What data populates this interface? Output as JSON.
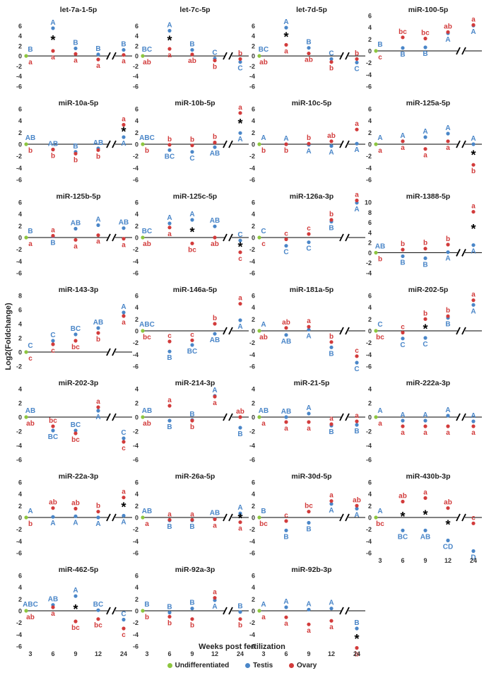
{
  "figure": {
    "ylabel": "Log2(Foldchange)",
    "xlabel": "Weeks post fertilization",
    "x_ticks": [
      "3",
      "6",
      "9",
      "12",
      "24"
    ],
    "legend": [
      {
        "name": "Undifferentiated",
        "color": "#8dc63f"
      },
      {
        "name": "Testis",
        "color": "#4a86c8"
      },
      {
        "name": "Ovary",
        "color": "#d23b3b"
      }
    ]
  },
  "chart_data": [
    {
      "type": "scatter",
      "title": "let-7a-1-5p",
      "ylim": [
        -6,
        8
      ],
      "yticks": [
        -6,
        -4,
        -2,
        0,
        2,
        4,
        6
      ],
      "testis": [
        0,
        5.5,
        1.5,
        0.3,
        1.2
      ],
      "ovary": [
        0,
        1.0,
        0.4,
        -0.7,
        0.2
      ],
      "testis_labels": [
        "B",
        "A",
        "B",
        "B",
        "B"
      ],
      "ovary_labels": [
        "a",
        "a",
        "a",
        "a",
        "a"
      ],
      "star": [
        1
      ]
    },
    {
      "type": "scatter",
      "title": "let-7c-5p",
      "ylim": [
        -6,
        8
      ],
      "yticks": [
        -6,
        -4,
        -2,
        0,
        2,
        4,
        6
      ],
      "testis": [
        0,
        5.0,
        1.2,
        -0.5,
        -1.2
      ],
      "ovary": [
        0,
        1.4,
        0.3,
        -0.9,
        -0.6
      ],
      "testis_labels": [
        "BC",
        "A",
        "B",
        "C",
        "C"
      ],
      "ovary_labels": [
        "ab",
        "a",
        "ab",
        "b",
        "b"
      ],
      "star": [
        1
      ]
    },
    {
      "type": "scatter",
      "title": "let-7d-5p",
      "ylim": [
        -6,
        8
      ],
      "yticks": [
        -6,
        -4,
        -2,
        0,
        2,
        4,
        6
      ],
      "testis": [
        0,
        5.6,
        1.6,
        -0.6,
        -1.3
      ],
      "ovary": [
        0,
        2.2,
        0.5,
        -1.2,
        -0.6
      ],
      "testis_labels": [
        "BC",
        "A",
        "B",
        "C",
        "C"
      ],
      "ovary_labels": [
        "ab",
        "a",
        "ab",
        "b",
        "b"
      ],
      "star": [
        1
      ]
    },
    {
      "type": "scatter",
      "title": "miR-100-5p",
      "ylim": [
        -6,
        6
      ],
      "yticks": [
        -6,
        -4,
        -2,
        0,
        2,
        4,
        6
      ],
      "testis": [
        0,
        0.5,
        0.6,
        3.0,
        4.3
      ],
      "ovary": [
        0,
        2.3,
        2.1,
        3.2,
        4.4
      ],
      "testis_labels": [
        "B",
        "B",
        "B",
        "A",
        "A"
      ],
      "ovary_labels": [
        "c",
        "bc",
        "bc",
        "ab",
        "a"
      ],
      "star": []
    },
    {
      "type": "scatter",
      "title": "miR-10a-5p",
      "ylim": [
        -6,
        6
      ],
      "yticks": [
        -6,
        -4,
        -2,
        0,
        2,
        4,
        6
      ],
      "testis": [
        0,
        -0.9,
        -1.3,
        -0.7,
        1.2
      ],
      "ovary": [
        0,
        -0.9,
        -1.6,
        -1.0,
        3.3
      ],
      "testis_labels": [
        "AB",
        "AB",
        "B",
        "AB",
        "A"
      ],
      "ovary_labels": [
        "b",
        "b",
        "b",
        "b",
        "a"
      ],
      "star": [
        4
      ]
    },
    {
      "type": "scatter",
      "title": "miR-10b-5p",
      "ylim": [
        -6,
        6
      ],
      "yticks": [
        -6,
        -4,
        -2,
        0,
        2,
        4,
        6
      ],
      "testis": [
        0,
        -1.0,
        -1.3,
        -0.5,
        1.9
      ],
      "ovary": [
        0,
        -0.1,
        -0.2,
        0.3,
        5.3
      ],
      "testis_labels": [
        "ABC",
        "BC",
        "C",
        "AB",
        "A"
      ],
      "ovary_labels": [
        "b",
        "b",
        "b",
        "b",
        "a"
      ],
      "star": [
        4
      ]
    },
    {
      "type": "scatter",
      "title": "miR-10c-5p",
      "ylim": [
        -6,
        6
      ],
      "yticks": [
        -6,
        -4,
        -2,
        0,
        2,
        4,
        6
      ],
      "testis": [
        0,
        0.0,
        -0.1,
        -0.3,
        0.1
      ],
      "ovary": [
        0,
        0.0,
        0.1,
        0.5,
        2.5
      ],
      "testis_labels": [
        "A",
        "A",
        "A",
        "A",
        "A"
      ],
      "ovary_labels": [
        "b",
        "b",
        "b",
        "ab",
        "a"
      ],
      "star": []
    },
    {
      "type": "scatter",
      "title": "miR-125a-5p",
      "ylim": [
        -6,
        6
      ],
      "yticks": [
        -6,
        -4,
        -2,
        0,
        2,
        4,
        6
      ],
      "testis": [
        0,
        0.5,
        1.2,
        1.8,
        0.0
      ],
      "ovary": [
        0,
        0.5,
        -0.8,
        0.5,
        -3.5
      ],
      "testis_labels": [
        "A",
        "A",
        "A",
        "A",
        "A"
      ],
      "ovary_labels": [
        "a",
        "a",
        "a",
        "a",
        "b"
      ],
      "star": [
        4
      ]
    },
    {
      "type": "scatter",
      "title": "miR-125b-5p",
      "ylim": [
        -6,
        6
      ],
      "yticks": [
        -6,
        -4,
        -2,
        0,
        2,
        4,
        6
      ],
      "testis": [
        0,
        0.2,
        1.5,
        2.1,
        1.6
      ],
      "ovary": [
        0,
        0.3,
        -0.4,
        0.4,
        -0.2
      ],
      "testis_labels": [
        "B",
        "B",
        "AB",
        "A",
        "AB"
      ],
      "ovary_labels": [
        "a",
        "a",
        "a",
        "a",
        "a"
      ],
      "star": []
    },
    {
      "type": "scatter",
      "title": "miR-125c-5p",
      "ylim": [
        -6,
        6
      ],
      "yticks": [
        -6,
        -4,
        -2,
        0,
        2,
        4,
        6
      ],
      "testis": [
        0,
        2.4,
        3.0,
        1.9,
        -0.5
      ],
      "ovary": [
        0,
        1.7,
        -1.0,
        0.0,
        -2.5
      ],
      "testis_labels": [
        "BC",
        "A",
        "A",
        "AB",
        "C"
      ],
      "ovary_labels": [
        "ab",
        "a",
        "bc",
        "ab",
        "c"
      ],
      "star": [
        2,
        4
      ]
    },
    {
      "type": "scatter",
      "title": "miR-126a-3p",
      "ylim": [
        -6,
        6
      ],
      "yticks": [
        -6,
        -4,
        -2,
        0,
        2,
        4,
        6
      ],
      "testis": [
        0,
        -1.4,
        -0.8,
        2.7,
        5.9
      ],
      "ovary": [
        0,
        -0.3,
        0.6,
        3.0,
        6.3
      ],
      "testis_labels": [
        "C",
        "C",
        "C",
        "B",
        "A"
      ],
      "ovary_labels": [
        "c",
        "c",
        "c",
        "b",
        "a"
      ],
      "star": []
    },
    {
      "type": "scatter",
      "title": "miR-1388-5p",
      "ylim": [
        -4,
        10
      ],
      "yticks": [
        -4,
        -2,
        0,
        2,
        4,
        6,
        8,
        10
      ],
      "testis": [
        0,
        -0.7,
        -1.1,
        0.1,
        1.5
      ],
      "ovary": [
        0,
        0.6,
        0.8,
        1.6,
        8.1
      ],
      "testis_labels": [
        "AB",
        "B",
        "B",
        "A",
        "A"
      ],
      "ovary_labels": [
        "b",
        "b",
        "b",
        "b",
        "a"
      ],
      "star": [
        4
      ]
    },
    {
      "type": "scatter",
      "title": "miR-143-3p",
      "ylim": [
        -2,
        8
      ],
      "yticks": [
        -2,
        0,
        2,
        4,
        6,
        8
      ],
      "testis": [
        0,
        1.6,
        2.5,
        3.4,
        5.6
      ],
      "ovary": [
        0,
        1.1,
        1.6,
        2.7,
        5.1
      ],
      "testis_labels": [
        "C",
        "C",
        "BC",
        "AB",
        "A"
      ],
      "ovary_labels": [
        "c",
        "c",
        "bc",
        "b",
        "a"
      ],
      "star": []
    },
    {
      "type": "scatter",
      "title": "miR-146a-5p",
      "ylim": [
        -6,
        6
      ],
      "yticks": [
        -6,
        -4,
        -2,
        0,
        2,
        4,
        6
      ],
      "testis": [
        0,
        -3.5,
        -2.4,
        -0.5,
        1.8
      ],
      "ovary": [
        0,
        -1.8,
        -1.6,
        1.2,
        4.6
      ],
      "testis_labels": [
        "ABC",
        "B",
        "BC",
        "AB",
        "A"
      ],
      "ovary_labels": [
        "bc",
        "c",
        "c",
        "b",
        "a"
      ],
      "star": []
    },
    {
      "type": "scatter",
      "title": "miR-181a-5p",
      "ylim": [
        -6,
        6
      ],
      "yticks": [
        -6,
        -4,
        -2,
        0,
        2,
        4,
        6
      ],
      "testis": [
        0,
        -0.7,
        0.2,
        -2.8,
        -5.4
      ],
      "ovary": [
        0,
        0.5,
        0.7,
        -1.9,
        -4.3
      ],
      "testis_labels": [
        "A",
        "AB",
        "A",
        "B",
        "C"
      ],
      "ovary_labels": [
        "ab",
        "ab",
        "a",
        "b",
        "c"
      ],
      "star": []
    },
    {
      "type": "scatter",
      "title": "miR-202-5p",
      "ylim": [
        -6,
        6
      ],
      "yticks": [
        -6,
        -4,
        -2,
        0,
        2,
        4,
        6
      ],
      "testis": [
        0,
        -1.3,
        -1.2,
        2.2,
        4.4
      ],
      "ovary": [
        0,
        -0.3,
        2.0,
        2.5,
        5.2
      ],
      "testis_labels": [
        "C",
        "C",
        "C",
        "B",
        "A"
      ],
      "ovary_labels": [
        "bc",
        "c",
        "b",
        "b",
        "a"
      ],
      "star": [
        2
      ]
    },
    {
      "type": "scatter",
      "title": "miR-202-3p",
      "ylim": [
        -6,
        4
      ],
      "yticks": [
        -6,
        -4,
        -2,
        0,
        2,
        4
      ],
      "testis": [
        0,
        -1.9,
        -1.9,
        0.9,
        -3.0
      ],
      "ovary": [
        0,
        -1.3,
        -2.3,
        1.4,
        -3.5
      ],
      "testis_labels": [
        "AB",
        "BC",
        "BC",
        "A",
        "C"
      ],
      "ovary_labels": [
        "ab",
        "bc",
        "bc",
        "a",
        "c"
      ],
      "star": []
    },
    {
      "type": "scatter",
      "title": "miR-214-3p",
      "ylim": [
        -6,
        4
      ],
      "yticks": [
        -6,
        -4,
        -2,
        0,
        2,
        4
      ],
      "testis": [
        0,
        -0.5,
        -0.4,
        3.0,
        -1.5
      ],
      "ovary": [
        0,
        1.6,
        -0.5,
        2.9,
        0.0
      ],
      "testis_labels": [
        "AB",
        "B",
        "B",
        "A",
        "B"
      ],
      "ovary_labels": [
        "ab",
        "a",
        "b",
        "a",
        "ab"
      ],
      "star": []
    },
    {
      "type": "scatter",
      "title": "miR-21-5p",
      "ylim": [
        -6,
        4
      ],
      "yticks": [
        -6,
        -4,
        -2,
        0,
        2,
        4
      ],
      "testis": [
        0,
        0.0,
        0.5,
        -1.2,
        -1.1
      ],
      "ovary": [
        0,
        -0.7,
        -0.7,
        -1.0,
        -0.6
      ],
      "testis_labels": [
        "AB",
        "AB",
        "A",
        "B",
        "B"
      ],
      "ovary_labels": [
        "a",
        "a",
        "a",
        "a",
        "a"
      ],
      "star": []
    },
    {
      "type": "scatter",
      "title": "miR-222a-3p",
      "ylim": [
        -6,
        4
      ],
      "yticks": [
        -6,
        -4,
        -2,
        0,
        2,
        4
      ],
      "testis": [
        0,
        -0.5,
        -0.5,
        0.2,
        -0.6
      ],
      "ovary": [
        0,
        -1.3,
        -1.3,
        -1.3,
        -1.3
      ],
      "testis_labels": [
        "A",
        "A",
        "A",
        "A",
        "A"
      ],
      "ovary_labels": [
        "a",
        "a",
        "a",
        "a",
        "a"
      ],
      "star": []
    },
    {
      "type": "scatter",
      "title": "miR-22a-3p",
      "ylim": [
        -6,
        6
      ],
      "yticks": [
        -6,
        -4,
        -2,
        0,
        2,
        4,
        6
      ],
      "testis": [
        0,
        0.1,
        0.2,
        0.0,
        0.3
      ],
      "ovary": [
        0,
        1.6,
        1.5,
        1.0,
        3.4
      ],
      "testis_labels": [
        "A",
        "A",
        "A",
        "A",
        "A"
      ],
      "ovary_labels": [
        "b",
        "ab",
        "ab",
        "b",
        "a"
      ],
      "star": [
        4
      ]
    },
    {
      "type": "scatter",
      "title": "miR-26a-5p",
      "ylim": [
        -6,
        6
      ],
      "yticks": [
        -6,
        -4,
        -2,
        0,
        2,
        4,
        6
      ],
      "testis": [
        0,
        -0.5,
        -0.5,
        -0.2,
        0.7
      ],
      "ovary": [
        0,
        -0.4,
        -0.4,
        -0.3,
        -0.8
      ],
      "testis_labels": [
        "AB",
        "B",
        "B",
        "AB",
        "A"
      ],
      "ovary_labels": [
        "a",
        "a",
        "a",
        "a",
        "a"
      ],
      "star": [
        4
      ]
    },
    {
      "type": "scatter",
      "title": "miR-30d-5p",
      "ylim": [
        -6,
        6
      ],
      "yticks": [
        -6,
        -4,
        -2,
        0,
        2,
        4,
        6
      ],
      "testis": [
        0,
        -2.2,
        -0.9,
        2.3,
        1.5
      ],
      "ovary": [
        0,
        -0.6,
        1.0,
        2.8,
        2.0
      ],
      "testis_labels": [
        "B",
        "B",
        "B",
        "A",
        "A"
      ],
      "ovary_labels": [
        "bc",
        "c",
        "bc",
        "a",
        "ab"
      ],
      "star": []
    },
    {
      "type": "scatter",
      "title": "miR-430b-3p",
      "ylim": [
        -6,
        6
      ],
      "yticks": [
        -6,
        -4,
        -2,
        0,
        2,
        4,
        6
      ],
      "testis": [
        0,
        -2.2,
        -2.2,
        -3.9,
        -5.7
      ],
      "ovary": [
        0,
        2.7,
        3.3,
        1.6,
        -1.0
      ],
      "testis_labels": [
        "A",
        "BC",
        "AB",
        "CD",
        "D"
      ],
      "ovary_labels": [
        "bc",
        "ab",
        "a",
        "ab",
        "c"
      ],
      "star": [
        1,
        2,
        3
      ]
    },
    {
      "type": "scatter",
      "title": "miR-462-5p",
      "ylim": [
        -6,
        6
      ],
      "yticks": [
        -6,
        -4,
        -2,
        0,
        2,
        4,
        6
      ],
      "testis": [
        0,
        1.0,
        2.5,
        0.1,
        -1.5
      ],
      "ovary": [
        0,
        0.6,
        -1.8,
        -1.4,
        -3.0
      ],
      "testis_labels": [
        "ABC",
        "AB",
        "A",
        "BC",
        "C"
      ],
      "ovary_labels": [
        "ab",
        "a",
        "bc",
        "bc",
        "c"
      ],
      "star": [
        2
      ]
    },
    {
      "type": "scatter",
      "title": "miR-92a-3p",
      "ylim": [
        -6,
        6
      ],
      "yticks": [
        -6,
        -4,
        -2,
        0,
        2,
        4,
        6
      ],
      "testis": [
        0,
        -0.3,
        0.4,
        1.8,
        -0.2
      ],
      "ovary": [
        0,
        -1.0,
        -1.4,
        2.2,
        -1.4
      ],
      "testis_labels": [
        "B",
        "B",
        "B",
        "A",
        "B"
      ],
      "ovary_labels": [
        "b",
        "b",
        "b",
        "a",
        "b"
      ],
      "star": []
    },
    {
      "type": "scatter",
      "title": "miR-92b-3p",
      "ylim": [
        -6,
        6
      ],
      "yticks": [
        -6,
        -4,
        -2,
        0,
        2,
        4,
        6
      ],
      "testis": [
        0,
        0.6,
        0.2,
        0.4,
        -3.0
      ],
      "ovary": [
        0,
        -1.1,
        -2.3,
        -1.7,
        -6.3
      ],
      "testis_labels": [
        "A",
        "A",
        "A",
        "A",
        "B"
      ],
      "ovary_labels": [
        "a",
        "a",
        "a",
        "a",
        "b"
      ],
      "star": [
        4
      ]
    }
  ]
}
